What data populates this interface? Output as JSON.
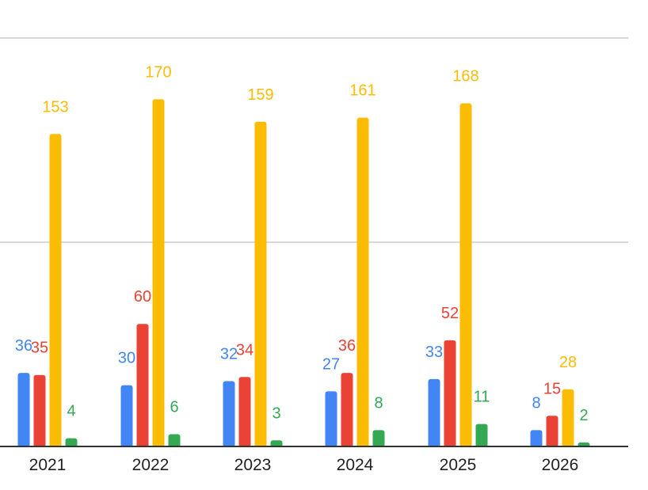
{
  "chart_data": {
    "type": "bar",
    "categories": [
      "2021",
      "2022",
      "2023",
      "2024",
      "2025",
      "2026"
    ],
    "series": [
      {
        "color": "#4285F4",
        "values": [
          36,
          30,
          32,
          27,
          33,
          8
        ]
      },
      {
        "color": "#EA4335",
        "values": [
          35,
          60,
          34,
          36,
          52,
          15
        ]
      },
      {
        "color": "#FBBC04",
        "values": [
          153,
          170,
          159,
          161,
          168,
          28
        ]
      },
      {
        "color": "#34A853",
        "values": [
          4,
          6,
          3,
          8,
          11,
          2
        ]
      }
    ],
    "data_labels": [
      [
        "36",
        "30",
        "32",
        "27",
        "33",
        "8"
      ],
      [
        "35",
        "60",
        "34",
        "36",
        "52",
        "15"
      ],
      [
        "153",
        "170",
        "159",
        "161",
        "168",
        "28"
      ],
      [
        "4",
        "6",
        "3",
        "8",
        "11",
        "2"
      ]
    ],
    "ylim": [
      0,
      200
    ],
    "gridlines": [
      100,
      200
    ],
    "grid": true,
    "legend": "none",
    "title": "",
    "xlabel": "",
    "ylabel": ""
  }
}
